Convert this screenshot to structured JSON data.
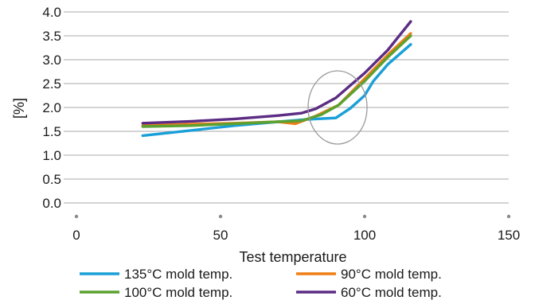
{
  "chart_data": {
    "type": "line",
    "xlabel": "Test temperature",
    "ylabel": "[%]",
    "xlim": [
      0,
      150
    ],
    "ylim": [
      0,
      4.0
    ],
    "x_ticks": [
      "0",
      "50",
      "100",
      "150"
    ],
    "y_ticks": [
      "0.0",
      "0.5",
      "1.0",
      "1.5",
      "2.0",
      "2.5",
      "3.0",
      "3.5",
      "4.0"
    ],
    "grid": "horizontal",
    "legend_placement": "bottom",
    "series": [
      {
        "name": "135°C mold temp.",
        "color": "#1a9fd8",
        "points": [
          [
            23,
            1.41
          ],
          [
            40,
            1.52
          ],
          [
            55,
            1.62
          ],
          [
            70,
            1.7
          ],
          [
            80,
            1.75
          ],
          [
            90,
            1.78
          ],
          [
            95,
            1.98
          ],
          [
            100,
            2.25
          ],
          [
            103,
            2.55
          ],
          [
            108,
            2.9
          ],
          [
            116,
            3.32
          ]
        ]
      },
      {
        "name": "90°C mold temp.",
        "color": "#ef7d14",
        "points": [
          [
            23,
            1.62
          ],
          [
            40,
            1.65
          ],
          [
            55,
            1.67
          ],
          [
            70,
            1.7
          ],
          [
            76,
            1.66
          ],
          [
            83,
            1.82
          ],
          [
            91,
            2.05
          ],
          [
            100,
            2.6
          ],
          [
            108,
            3.1
          ],
          [
            116,
            3.55
          ]
        ]
      },
      {
        "name": "100°C mold temp.",
        "color": "#5aa131",
        "points": [
          [
            23,
            1.6
          ],
          [
            40,
            1.62
          ],
          [
            55,
            1.66
          ],
          [
            70,
            1.7
          ],
          [
            78,
            1.72
          ],
          [
            85,
            1.85
          ],
          [
            91,
            2.05
          ],
          [
            100,
            2.55
          ],
          [
            108,
            3.05
          ],
          [
            116,
            3.5
          ]
        ]
      },
      {
        "name": "60°C mold temp.",
        "color": "#5b2c83",
        "points": [
          [
            23,
            1.67
          ],
          [
            40,
            1.71
          ],
          [
            55,
            1.76
          ],
          [
            70,
            1.83
          ],
          [
            78,
            1.88
          ],
          [
            83,
            1.97
          ],
          [
            90,
            2.2
          ],
          [
            100,
            2.72
          ],
          [
            108,
            3.2
          ],
          [
            116,
            3.8
          ]
        ]
      }
    ]
  }
}
